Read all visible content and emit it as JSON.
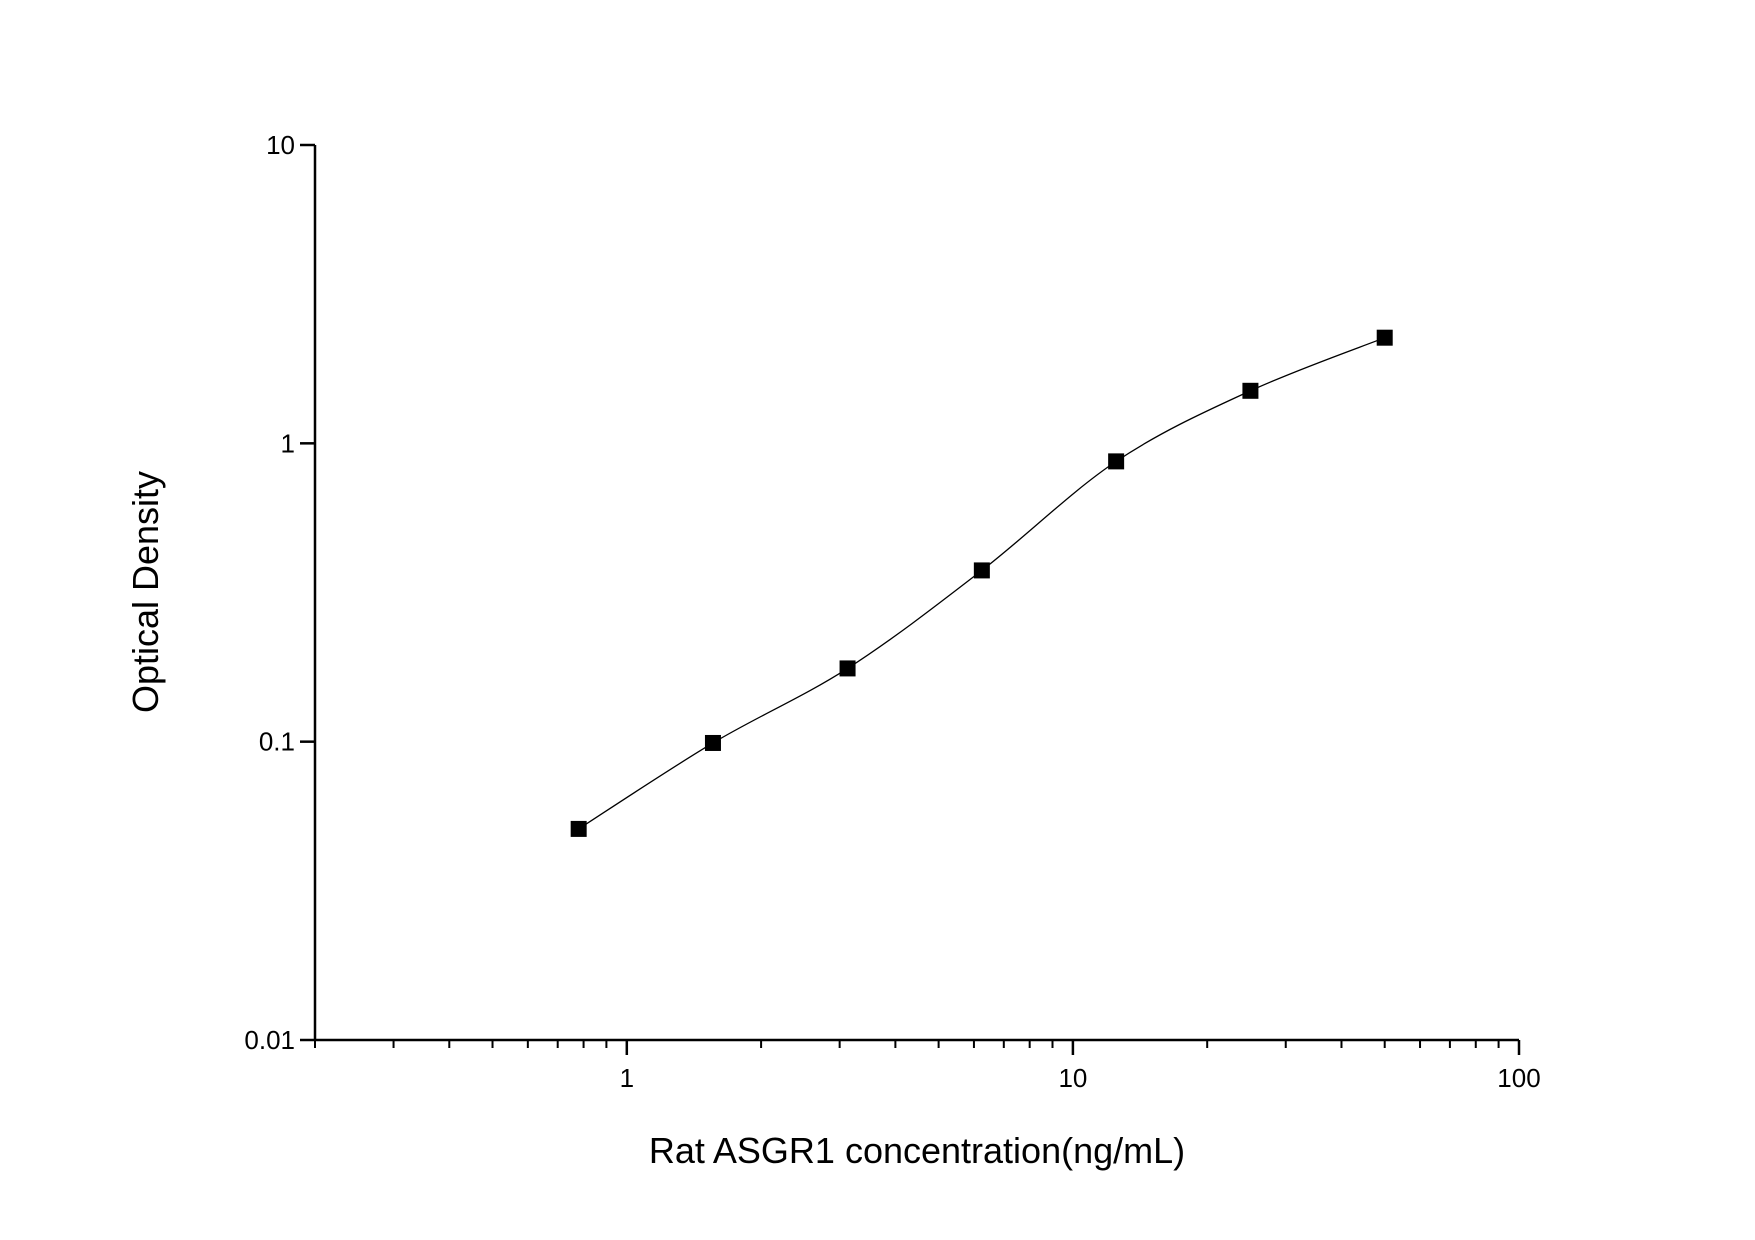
{
  "chart_data": {
    "type": "scatter",
    "title": "",
    "xlabel": "Rat ASGR1 concentration(ng/mL)",
    "ylabel": "Optical Density",
    "x_scale": "log",
    "y_scale": "log",
    "xlim": [
      0.2,
      100
    ],
    "ylim": [
      0.01,
      10
    ],
    "x_ticks": [
      {
        "v": 1,
        "label": "1"
      },
      {
        "v": 10,
        "label": "10"
      },
      {
        "v": 100,
        "label": "100"
      }
    ],
    "y_ticks": [
      {
        "v": 0.01,
        "label": "0.01"
      },
      {
        "v": 0.1,
        "label": "0.1"
      },
      {
        "v": 1,
        "label": "1"
      },
      {
        "v": 10,
        "label": "10"
      }
    ],
    "grid": false,
    "series": [
      {
        "x": [
          0.78,
          1.56,
          3.125,
          6.25,
          12.5,
          25,
          50
        ],
        "y": [
          0.051,
          0.099,
          0.176,
          0.375,
          0.87,
          1.5,
          2.26
        ],
        "marker": "square",
        "fit_curve": true,
        "color": "#000000"
      }
    ]
  }
}
